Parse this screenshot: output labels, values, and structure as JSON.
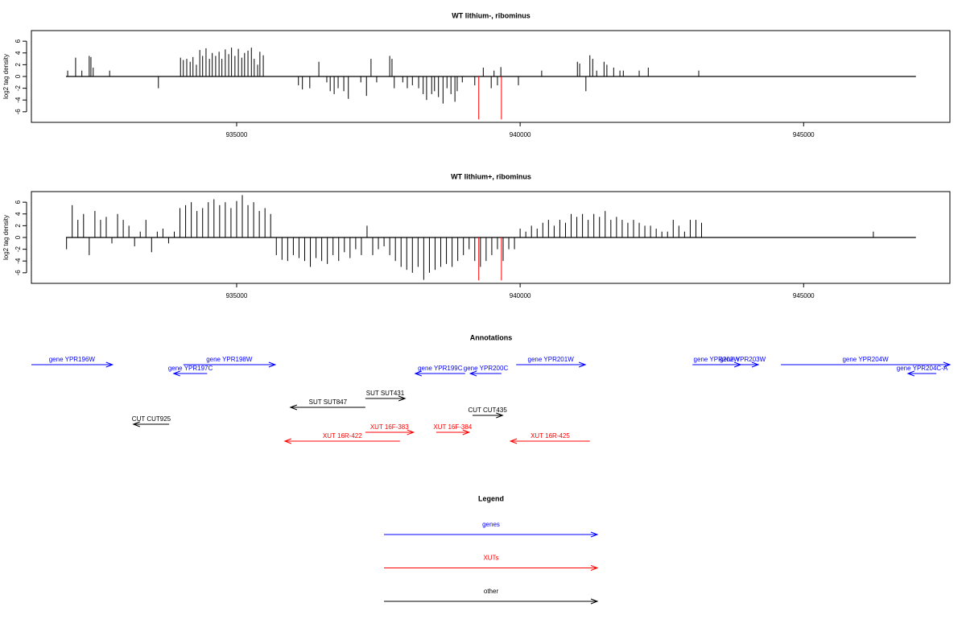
{
  "chart_data": [
    {
      "type": "bar",
      "title": "WT lithium-, ribominus",
      "y_label": "log2 tag density",
      "xlim": [
        931380,
        947580
      ],
      "ylim": [
        -7.8,
        7.8
      ],
      "xticks": [
        935000,
        940000,
        945000
      ],
      "yticks": [
        -6,
        -4,
        -2,
        0,
        2,
        4,
        6
      ],
      "region": [
        931990,
        946980
      ],
      "series": [
        {
          "color": "#000000",
          "x": [
            932020,
            932160,
            932270,
            932400,
            932430,
            932470,
            932760,
            933620,
            934010,
            934060,
            934120,
            934180,
            934230,
            934290,
            934350,
            934400,
            934460,
            934520,
            934570,
            934630,
            934690,
            934740,
            934800,
            934860,
            934910,
            934970,
            935030,
            935090,
            935140,
            935200,
            935260,
            935310,
            935370,
            935410,
            935470,
            936090,
            936160,
            936290,
            936450,
            936590,
            936650,
            936720,
            936790,
            936890,
            936970,
            937190,
            937290,
            937370,
            937470,
            937700,
            937740,
            937780,
            937930,
            938010,
            938100,
            938210,
            938290,
            938350,
            938440,
            938490,
            938560,
            938640,
            938710,
            938780,
            938850,
            938890,
            938980,
            939200,
            939350,
            939490,
            939540,
            939600,
            939660,
            939970,
            940380,
            941010,
            941050,
            941160,
            941230,
            941280,
            941350,
            941480,
            941530,
            941650,
            941760,
            941820,
            942100,
            942260,
            943150
          ],
          "values": [
            1,
            3.2,
            1,
            3.5,
            3.3,
            1.5,
            1,
            -2,
            3.2,
            2.8,
            3,
            2.5,
            3.3,
            2,
            4.5,
            3.5,
            4.8,
            3,
            4,
            3.5,
            4.2,
            3,
            4.6,
            3.8,
            4.9,
            3.5,
            4.7,
            3.2,
            4,
            4.4,
            4.9,
            3,
            2,
            4.2,
            3.6,
            -1.5,
            -2.2,
            -2,
            2.5,
            -1,
            -2.5,
            -3,
            -2,
            -2.5,
            -3.8,
            -1,
            -3.3,
            3,
            -1,
            3.5,
            3,
            -2,
            -1,
            -2,
            -1.5,
            -2,
            -3,
            -4,
            -3,
            -2.5,
            -3.5,
            -4.6,
            -2,
            -3,
            -4.3,
            -2.5,
            -1,
            -1.5,
            1.5,
            -2,
            1,
            -1.5,
            1.6,
            -1.5,
            1,
            2.5,
            2.2,
            -2.5,
            3.6,
            3,
            1,
            2.5,
            2,
            1.5,
            1,
            1,
            1,
            1.5,
            1
          ]
        },
        {
          "color": "#ff0000",
          "x": [
            939270,
            939670
          ],
          "values": [
            -7.3,
            -7.3
          ]
        }
      ]
    },
    {
      "type": "bar",
      "title": "WT lithium+, ribominus",
      "y_label": "log2 tag density",
      "xlim": [
        931380,
        947580
      ],
      "ylim": [
        -7.8,
        7.8
      ],
      "xticks": [
        935000,
        940000,
        945000
      ],
      "yticks": [
        -6,
        -4,
        -2,
        0,
        2,
        4,
        6
      ],
      "region": [
        931990,
        946980
      ],
      "series": [
        {
          "color": "#000000",
          "x": [
            932000,
            932100,
            932200,
            932300,
            932400,
            932500,
            932600,
            932700,
            932800,
            932900,
            933000,
            933100,
            933200,
            933300,
            933400,
            933500,
            933600,
            933700,
            933800,
            933900,
            934000,
            934100,
            934200,
            934300,
            934400,
            934500,
            934600,
            934700,
            934800,
            934900,
            935000,
            935100,
            935200,
            935300,
            935400,
            935500,
            935600,
            935700,
            935800,
            935900,
            936000,
            936100,
            936200,
            936300,
            936400,
            936500,
            936600,
            936700,
            936800,
            936900,
            937000,
            937100,
            937200,
            937300,
            937400,
            937500,
            937600,
            937700,
            937800,
            937900,
            938000,
            938100,
            938200,
            938300,
            938400,
            938500,
            938600,
            938700,
            938800,
            938900,
            939000,
            939100,
            939200,
            939300,
            939400,
            939500,
            939600,
            939700,
            939800,
            939900,
            940000,
            940100,
            940200,
            940300,
            940400,
            940500,
            940600,
            940700,
            940800,
            940900,
            941000,
            941100,
            941200,
            941300,
            941400,
            941500,
            941600,
            941700,
            941800,
            941900,
            942000,
            942100,
            942200,
            942300,
            942400,
            942500,
            942600,
            942700,
            942800,
            942900,
            943000,
            943100,
            943200,
            946230
          ],
          "values": [
            -2,
            5.5,
            3,
            4,
            -3,
            4.5,
            3,
            3.5,
            -1,
            4,
            3,
            2,
            -1.5,
            1,
            3,
            -2.5,
            1,
            1.5,
            -1,
            1,
            5,
            5.5,
            6,
            4.5,
            5,
            6,
            6.5,
            5.5,
            6,
            5,
            6.2,
            7.2,
            5.5,
            6,
            4.5,
            5,
            4,
            -3,
            -3.8,
            -4,
            -3,
            -3.5,
            -4,
            -5,
            -3.5,
            -4,
            -4.5,
            -3,
            -4,
            -2.5,
            -3.5,
            -2,
            -3,
            2,
            -3,
            -2,
            -1.5,
            -3,
            -4,
            -5,
            -5.5,
            -6,
            -5,
            -7.2,
            -6,
            -5.5,
            -5,
            -4.5,
            -5,
            -4,
            -3,
            -2,
            -4,
            -5,
            -4,
            -3,
            -2,
            -4,
            -2,
            -2,
            1.5,
            1,
            2,
            1.5,
            2.5,
            3,
            2,
            3,
            2.5,
            4,
            3.5,
            4,
            3,
            4,
            3.5,
            4.5,
            3,
            3.5,
            3,
            2.5,
            3,
            2.5,
            2,
            2,
            1.5,
            1,
            1,
            3,
            2,
            1,
            3,
            3,
            2.5,
            1
          ]
        },
        {
          "color": "#ff0000",
          "x": [
            939270,
            939670
          ],
          "values": [
            -7.3,
            -7.3
          ]
        }
      ]
    }
  ],
  "annotations": {
    "title": "Annotations",
    "tracks": [
      {
        "color": "#0000ff",
        "items": [
          {
            "label": "gene YPR196W",
            "start": 931380,
            "end": 932810
          },
          {
            "label": "gene YPR197C",
            "start": 934480,
            "end": 933890
          },
          {
            "label": "gene YPR198W",
            "start": 934060,
            "end": 935680
          },
          {
            "label": "gene YPR199C",
            "start": 939030,
            "end": 938150
          },
          {
            "label": "gene YPR200C",
            "start": 939670,
            "end": 939120
          },
          {
            "label": "gene YPR201W",
            "start": 939930,
            "end": 941150
          },
          {
            "label": "gene YPR202W",
            "start": 943040,
            "end": 943890
          },
          {
            "label": "gene YPR203W",
            "start": 943650,
            "end": 944200
          },
          {
            "label": "gene YPR204W",
            "start": 944600,
            "end": 947580
          },
          {
            "label": "gene YPR204C-A",
            "start": 947340,
            "end": 946840
          }
        ]
      },
      {
        "color": "#000000",
        "items": [
          {
            "label": "SUT SUT847",
            "start": 937270,
            "end": 935950
          },
          {
            "label": "SUT SUT431",
            "start": 937270,
            "end": 937970
          }
        ]
      },
      {
        "color": "#000000",
        "items": [
          {
            "label": "CUT CUT435",
            "start": 939160,
            "end": 939690
          },
          {
            "label": "CUT CUT925",
            "start": 933810,
            "end": 933180
          }
        ]
      },
      {
        "color": "#ff0000",
        "items": [
          {
            "label": "XUT 16R-422",
            "start": 937880,
            "end": 935850
          },
          {
            "label": "XUT 16F-383",
            "start": 937270,
            "end": 938120
          },
          {
            "label": "XUT 16F-384",
            "start": 938520,
            "end": 939100
          },
          {
            "label": "XUT 16R-425",
            "start": 941230,
            "end": 939830
          }
        ]
      }
    ]
  },
  "legend": {
    "title": "Legend",
    "items": [
      {
        "label": "genes",
        "color": "#0000ff"
      },
      {
        "label": "XUTs",
        "color": "#ff0000"
      },
      {
        "label": "other",
        "color": "#000000"
      }
    ]
  }
}
